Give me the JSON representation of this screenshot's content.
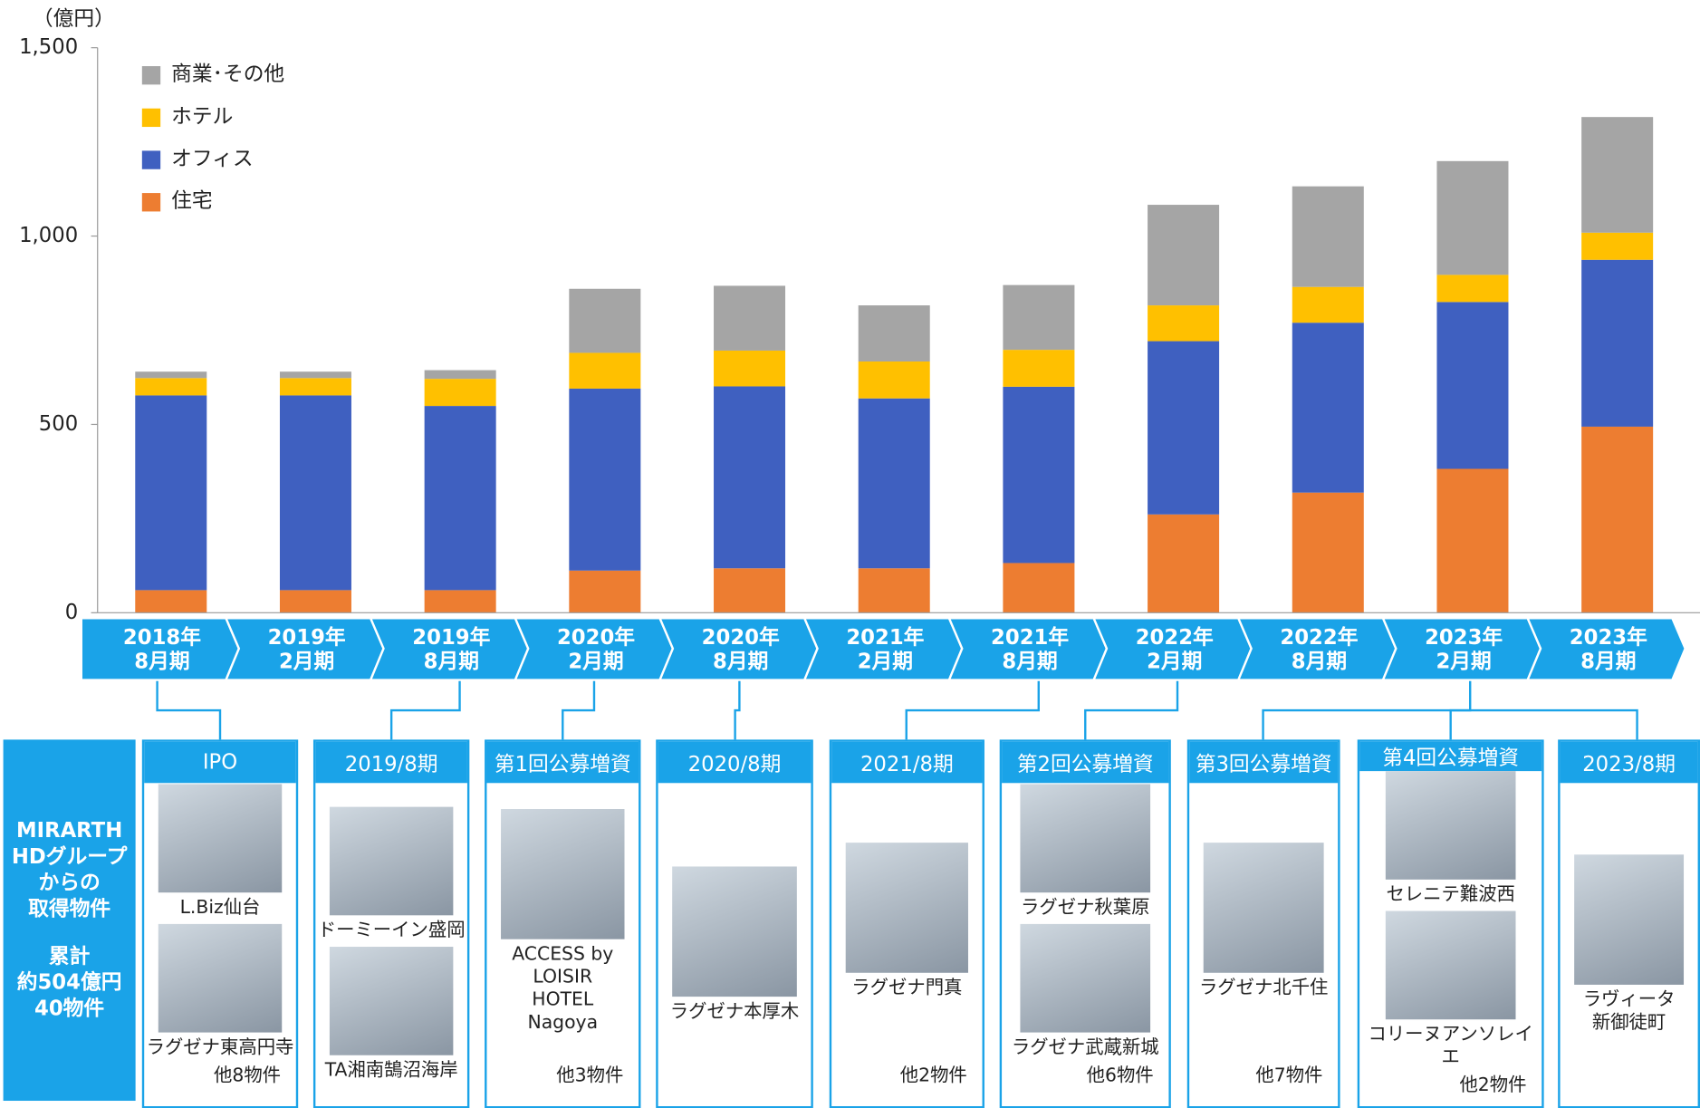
{
  "chart_data": {
    "type": "bar",
    "stacked": true,
    "y_unit": "（億円）",
    "categories": [
      "2018年\n8月期",
      "2019年\n2月期",
      "2019年\n8月期",
      "2020年\n2月期",
      "2020年\n8月期",
      "2021年\n2月期",
      "2021年\n8月期",
      "2022年\n2月期",
      "2022年\n8月期",
      "2023年\n2月期",
      "2023年\n8月期"
    ],
    "series": [
      {
        "name": "住宅",
        "color": "#ed7d31",
        "values": [
          60,
          60,
          60,
          112,
          118,
          118,
          132,
          261,
          319,
          382,
          494
        ]
      },
      {
        "name": "オフィス",
        "color": "#3f60c0",
        "values": [
          517,
          517,
          489,
          483,
          483,
          451,
          468,
          460,
          451,
          443,
          443
        ]
      },
      {
        "name": "ホテル",
        "color": "#ffc000",
        "values": [
          46,
          46,
          72,
          95,
          95,
          98,
          98,
          95,
          95,
          72,
          72
        ]
      },
      {
        "name": "商業･その他",
        "color": "#a5a5a5",
        "values": [
          17,
          17,
          23,
          170,
          172,
          149,
          172,
          267,
          267,
          302,
          307
        ]
      }
    ],
    "ylim": [
      0,
      1500
    ],
    "yticks": [
      0,
      500,
      {
        "value": 1000,
        "label": "1,000"
      },
      {
        "value": 1500,
        "label": "1,500"
      }
    ]
  },
  "side": {
    "title": "MIRARTH\nHDグループ\nからの\n取得物件",
    "summary": "累計\n約504億円\n40物件"
  },
  "panels": [
    {
      "header": "IPO",
      "items": [
        "L.Biz仙台",
        "ラグゼナ東高円寺"
      ],
      "note": "他8物件"
    },
    {
      "header": "2019/8期",
      "items": [
        "ドーミーイン盛岡",
        "TA湘南鵠沼海岸"
      ]
    },
    {
      "header": "第1回公募増資",
      "items": [
        "ACCESS by\nLOISIR\nHOTEL\nNagoya"
      ],
      "note": "他3物件"
    },
    {
      "header": "2020/8期",
      "items": [
        "ラグゼナ本厚木"
      ]
    },
    {
      "header": "2021/8期",
      "items": [
        "ラグゼナ門真"
      ],
      "note": "他2物件"
    },
    {
      "header": "第2回公募増資",
      "items": [
        "ラグゼナ秋葉原",
        "ラグゼナ武蔵新城"
      ],
      "note": "他6物件"
    },
    {
      "header": "第3回公募増資",
      "items": [
        "ラグゼナ北千住"
      ],
      "note": "他7物件"
    },
    {
      "header": "第4回公募増資",
      "items": [
        "セレニテ難波西",
        "コリーヌアンソレイエ"
      ],
      "note": "他2物件"
    },
    {
      "header": "2023/8期",
      "items": [
        "ラヴィータ\n新御徒町"
      ]
    }
  ]
}
